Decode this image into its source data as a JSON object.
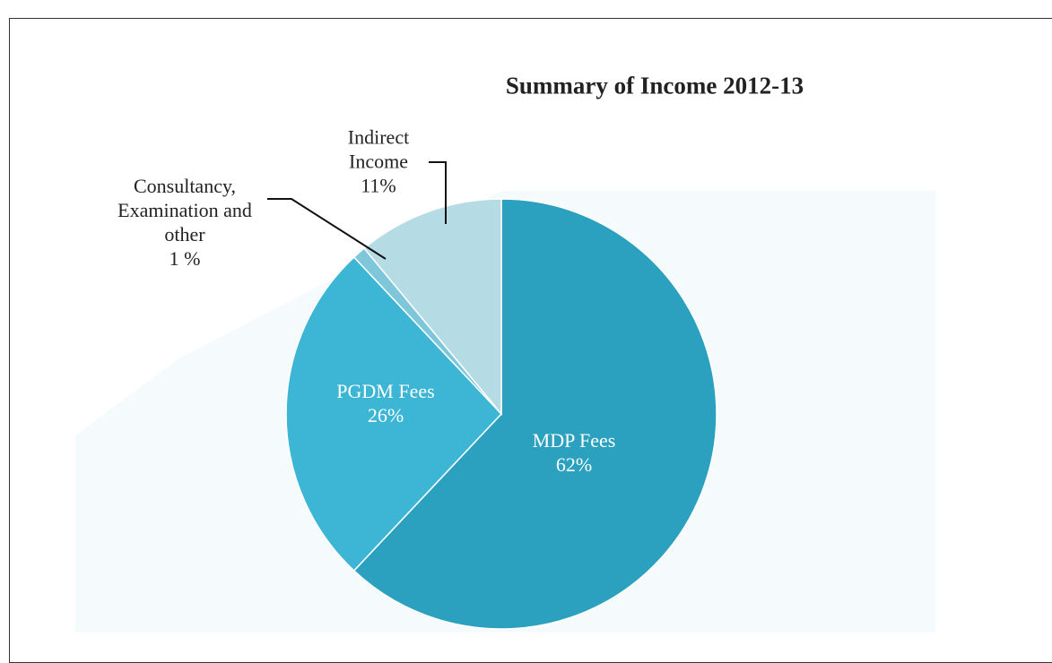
{
  "chart_data": {
    "type": "pie",
    "title": "Summary of Income 2012-13",
    "categories": [
      "MDP Fees",
      "PGDM Fees",
      "Consultancy, Examination and other",
      "Indirect Income"
    ],
    "values": [
      62,
      26,
      1,
      11
    ],
    "value_labels": [
      "62%",
      "26%",
      "1 %",
      "11%"
    ],
    "colors": [
      "#2ba1bf",
      "#3cb6d4",
      "#7ec7da",
      "#b5dbe5"
    ]
  }
}
